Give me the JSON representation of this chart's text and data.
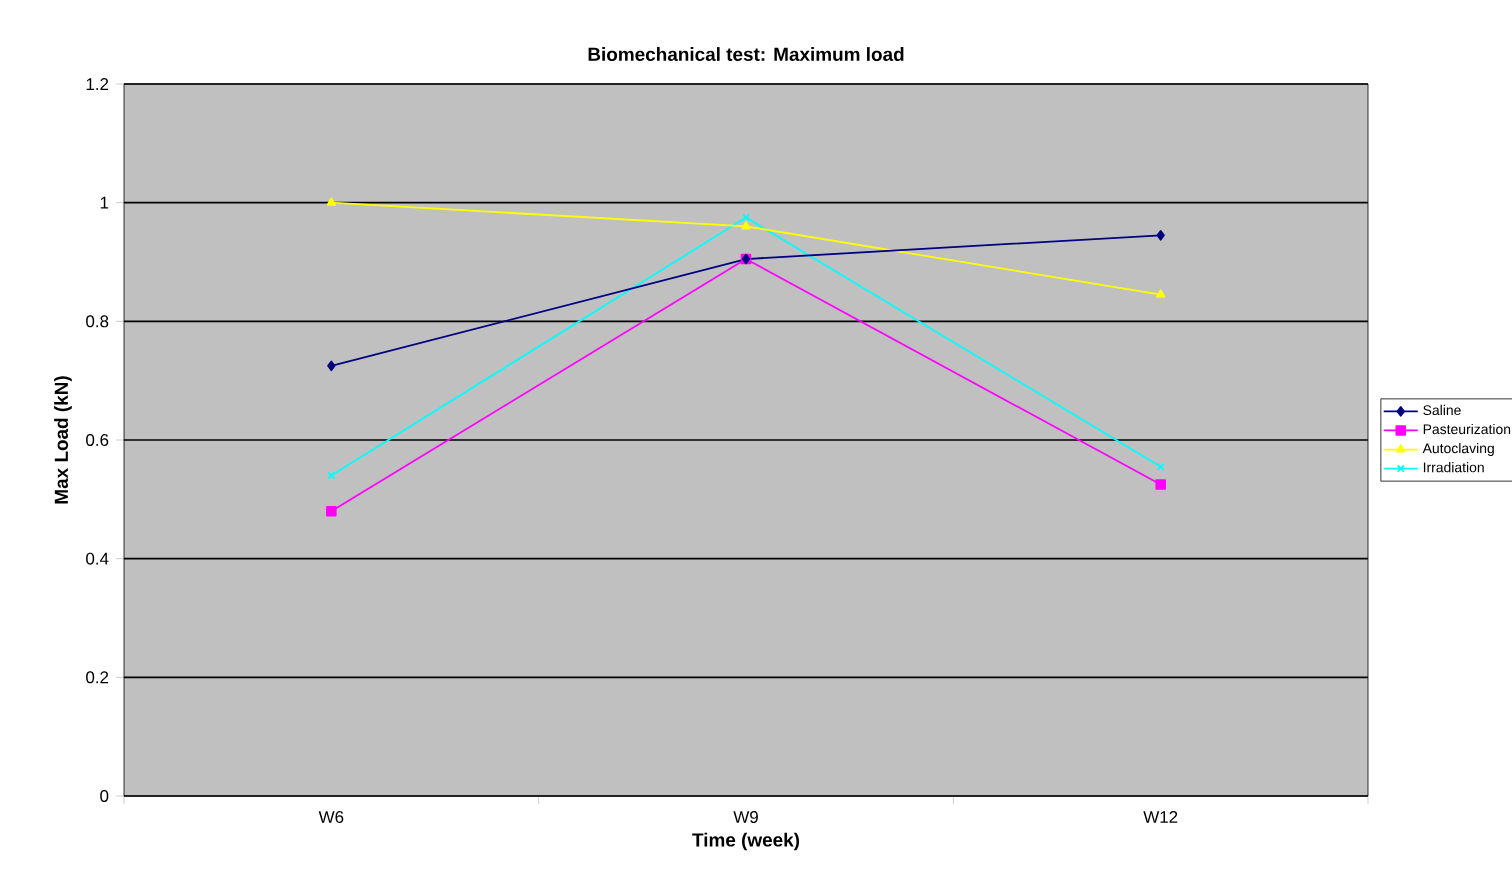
{
  "chart_data": {
    "type": "line",
    "title": "Biomechanical test: Maximum load",
    "xlabel": "Time (week)",
    "ylabel": "Max Load (kN)",
    "categories": [
      "W6",
      "W9",
      "W12"
    ],
    "series": [
      {
        "name": "Saline",
        "color": "#000080",
        "values": [
          0.725,
          0.905,
          0.945
        ],
        "marker": "diamond"
      },
      {
        "name": "Pasteurization",
        "color": "#ff00ff",
        "values": [
          0.48,
          0.905,
          0.525
        ],
        "marker": "square"
      },
      {
        "name": "Autoclaving",
        "color": "#ffff00",
        "values": [
          1.0,
          0.96,
          0.845
        ],
        "marker": "triangle"
      },
      {
        "name": "Irradiation",
        "color": "#00ffff",
        "values": [
          0.54,
          0.975,
          0.555
        ],
        "marker": "cross"
      }
    ],
    "ylim": [
      0,
      1.2
    ],
    "yticks": [
      0,
      0.2,
      0.4,
      0.6,
      0.8,
      1,
      1.2
    ],
    "grid": "y",
    "legend": "right",
    "line_style": "solid"
  }
}
